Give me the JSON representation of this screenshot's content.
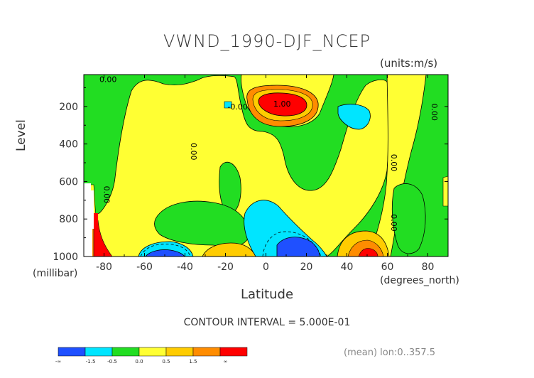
{
  "chart_data": {
    "type": "heatmap",
    "title": "VWND_1990-DJF_NCEP",
    "units": "(units:m/s)",
    "xlabel": "Latitude",
    "x_units": "(degrees_north)",
    "ylabel": "Level",
    "y_units": "(millibar)",
    "xlim": [
      -90,
      90
    ],
    "ylim": [
      1000,
      30
    ],
    "x_ticks": [
      "-80",
      "-60",
      "-40",
      "-20",
      "0",
      "20",
      "40",
      "60",
      "80"
    ],
    "x_tick_values": [
      -80,
      -60,
      -40,
      -20,
      0,
      20,
      40,
      60,
      80
    ],
    "y_ticks": [
      "200",
      "400",
      "600",
      "800",
      "1000"
    ],
    "y_tick_values": [
      200,
      400,
      600,
      800,
      1000
    ],
    "contour_labels": [
      {
        "text": "0.00",
        "lat": -78,
        "lev": 70
      },
      {
        "text": "-0.00",
        "lat": -14,
        "lev": 215
      },
      {
        "text": "1.00",
        "lat": 8,
        "lev": 200
      },
      {
        "text": "0.00",
        "lat": -37,
        "lev": 440
      },
      {
        "text": "0.00",
        "lat": -80,
        "lev": 670
      },
      {
        "text": "0.00",
        "lat": 62,
        "lev": 500
      },
      {
        "text": "0.00",
        "lat": 62,
        "lev": 820
      },
      {
        "text": "0.00",
        "lat": 82,
        "lev": 230
      }
    ],
    "regions": [
      {
        "level": "0.0",
        "points": [
          [
            -90,
            30
          ],
          [
            -90,
            600
          ],
          [
            -84,
            600
          ],
          [
            -82,
            780
          ],
          [
            -88,
            800
          ],
          [
            -90,
            860
          ],
          [
            -90,
            1000
          ],
          [
            -82,
            1000
          ],
          [
            -76,
            1000
          ],
          [
            -60,
            1000
          ],
          [
            -40,
            1000
          ],
          [
            -22,
            1000
          ],
          [
            -14,
            1000
          ],
          [
            0,
            1000
          ],
          [
            30,
            1000
          ],
          [
            56,
            1000
          ],
          [
            72,
            1000
          ],
          [
            82,
            1000
          ],
          [
            90,
            1000
          ],
          [
            90,
            30
          ],
          [
            66,
            30
          ],
          [
            52,
            30
          ],
          [
            46,
            150
          ],
          [
            42,
            400
          ],
          [
            36,
            700
          ],
          [
            30,
            700
          ],
          [
            28,
            400
          ],
          [
            22,
            350
          ],
          [
            12,
            280
          ],
          [
            4,
            250
          ],
          [
            0,
            120
          ],
          [
            -4,
            30
          ],
          [
            -10,
            30
          ],
          [
            -14,
            70
          ],
          [
            -20,
            50
          ],
          [
            -28,
            30
          ],
          [
            -45,
            30
          ],
          [
            -54,
            80
          ],
          [
            -60,
            170
          ],
          [
            -66,
            340
          ],
          [
            -72,
            460
          ],
          [
            -76,
            600
          ],
          [
            -80,
            650
          ],
          [
            -82,
            400
          ],
          [
            -84,
            200
          ],
          [
            -88,
            60
          ]
        ],
        "id": "green-left"
      },
      {
        "level": "0.5",
        "points": [
          [
            -90,
            30
          ],
          [
            -90,
            600
          ],
          [
            -84,
            600
          ],
          [
            -82,
            780
          ],
          [
            -88,
            800
          ],
          [
            -90,
            860
          ],
          [
            -90,
            1000
          ],
          [
            -76,
            1000
          ],
          [
            -78,
            850
          ],
          [
            -82,
            400
          ],
          [
            -84,
            200
          ],
          [
            -88,
            60
          ]
        ],
        "id": "unused"
      }
    ],
    "colorbar": {
      "labels": [
        "-∞",
        "-1.5",
        "-0.5",
        "0.0",
        "0.5",
        "1.5",
        "∞"
      ],
      "colors": [
        "#1f50ff",
        "#00e5ff",
        "#22dd22",
        "#ffff33",
        "#ffcc00",
        "#ff8c00",
        "#ff0000"
      ]
    }
  },
  "contour_interval": "CONTOUR INTERVAL = 5.000E-01",
  "mean_note": "(mean) lon:0..357.5"
}
